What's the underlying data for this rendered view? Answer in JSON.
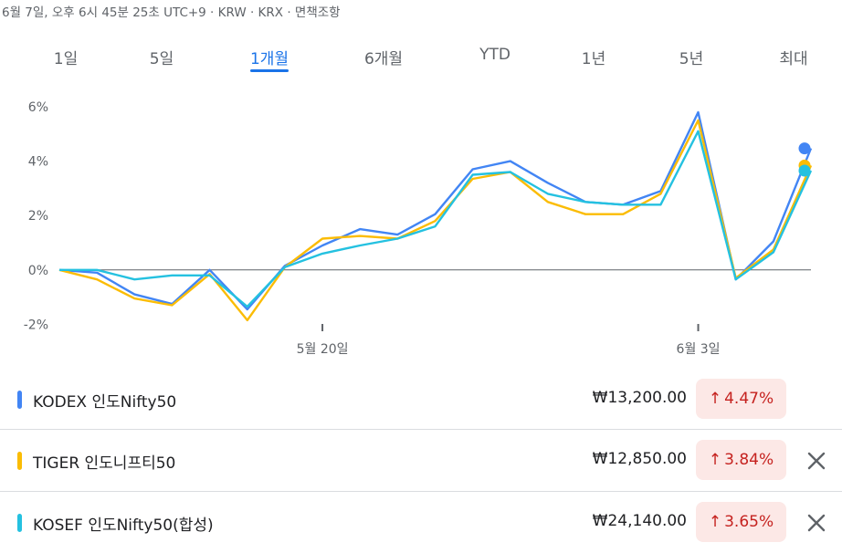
{
  "header": {
    "text": "6월 7일, 오후 6시 45분 25초 UTC+9 · KRW · KRX · 면책조항"
  },
  "tabs": [
    {
      "label": "1일",
      "active": false
    },
    {
      "label": "5일",
      "active": false
    },
    {
      "label": "1개월",
      "active": true
    },
    {
      "label": "6개월",
      "active": false
    },
    {
      "label": "YTD",
      "active": false
    },
    {
      "label": "1년",
      "active": false
    },
    {
      "label": "5년",
      "active": false
    },
    {
      "label": "최대",
      "active": false
    }
  ],
  "chart_data": {
    "type": "line",
    "ylim": [
      -2.5,
      6.5
    ],
    "yticks": [
      "6%",
      "4%",
      "2%",
      "0%",
      "-2%"
    ],
    "ytick_values": [
      6,
      4,
      2,
      0,
      -2
    ],
    "xtick_labels": [
      "5월 20일",
      "6월 3일"
    ],
    "xtick_index": [
      7,
      17
    ],
    "series": [
      {
        "name": "KODEX 인도Nifty50",
        "color": "#4285f4",
        "values": [
          0,
          -0.1,
          -0.9,
          -1.25,
          0,
          -1.45,
          0.15,
          0.9,
          1.5,
          1.3,
          2.05,
          3.7,
          4,
          3.2,
          2.5,
          2.4,
          2.9,
          5.8,
          -0.35,
          1.05,
          4.47
        ]
      },
      {
        "name": "TIGER 인도니프티50",
        "color": "#fbbc04",
        "values": [
          0,
          -0.35,
          -1.05,
          -1.3,
          -0.15,
          -1.85,
          0.1,
          1.15,
          1.25,
          1.15,
          1.8,
          3.35,
          3.6,
          2.5,
          2.05,
          2.05,
          2.8,
          5.5,
          -0.3,
          0.75,
          3.84
        ]
      },
      {
        "name": "KOSEF 인도Nifty50(합성)",
        "color": "#24c1e0",
        "values": [
          0,
          0,
          -0.35,
          -0.2,
          -0.2,
          -1.35,
          0.1,
          0.6,
          0.9,
          1.15,
          1.6,
          3.5,
          3.6,
          2.8,
          2.5,
          2.4,
          2.4,
          5.1,
          -0.35,
          0.65,
          3.65
        ]
      }
    ]
  },
  "rows": [
    {
      "color": "#4285f4",
      "name": "KODEX 인도Nifty50",
      "price": "₩13,200.00",
      "change": "4.47%",
      "arrow": "↑",
      "closable": false
    },
    {
      "color": "#fbbc04",
      "name": "TIGER 인도니프티50",
      "price": "₩12,850.00",
      "change": "3.84%",
      "arrow": "↑",
      "closable": true
    },
    {
      "color": "#24c1e0",
      "name": "KOSEF 인도Nifty50(합성)",
      "price": "₩24,140.00",
      "change": "3.65%",
      "arrow": "↑",
      "closable": true
    }
  ]
}
